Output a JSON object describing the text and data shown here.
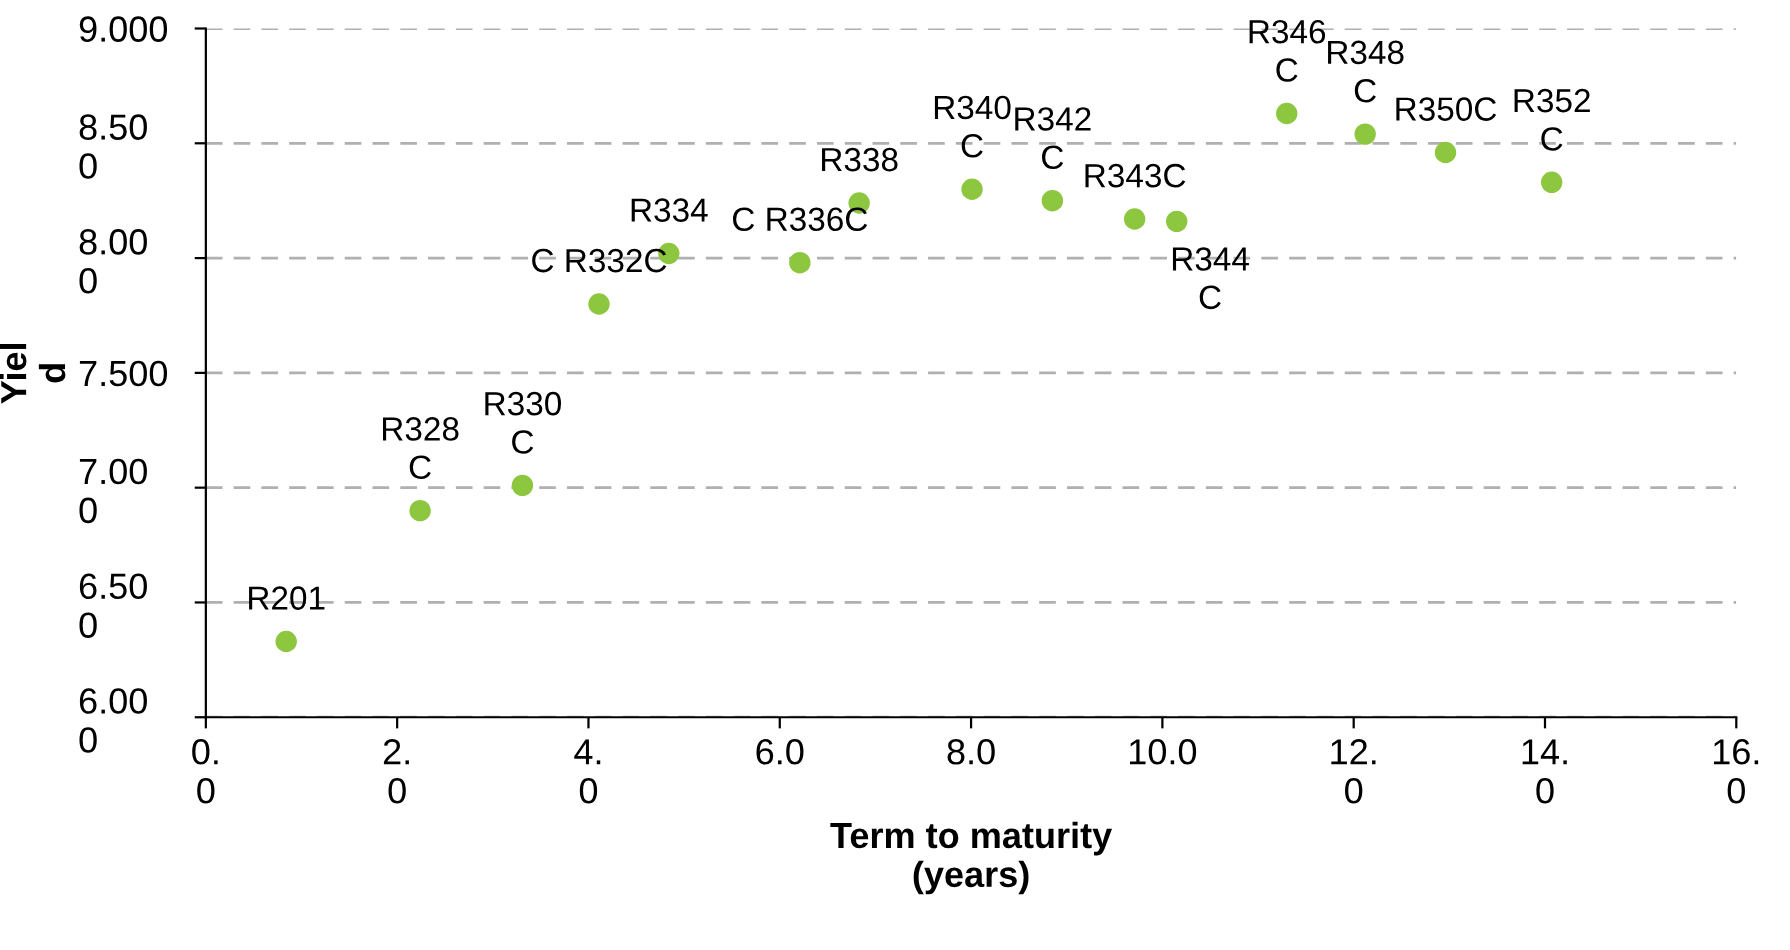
{
  "chart_data": {
    "type": "scatter",
    "xlabel": "Term to maturity\n(years)",
    "ylabel": "Yiel\nd",
    "xlim": [
      0,
      16
    ],
    "ylim": [
      6,
      9
    ],
    "xticks": [
      {
        "value": 0,
        "label": "0.\n0"
      },
      {
        "value": 2,
        "label": "2.\n0"
      },
      {
        "value": 4,
        "label": "4.\n0"
      },
      {
        "value": 6,
        "label": "6.0"
      },
      {
        "value": 8,
        "label": "8.0"
      },
      {
        "value": 10,
        "label": "10.0"
      },
      {
        "value": 12,
        "label": "12.\n0"
      },
      {
        "value": 14,
        "label": "14.\n0"
      },
      {
        "value": 16,
        "label": "16.\n0"
      }
    ],
    "yticks": [
      {
        "value": 6,
        "label": "6.00\n0"
      },
      {
        "value": 6.5,
        "label": "6.50\n0"
      },
      {
        "value": 7,
        "label": "7.00\n0"
      },
      {
        "value": 7.5,
        "label": "7.500"
      },
      {
        "value": 8,
        "label": "8.00\n0"
      },
      {
        "value": 8.5,
        "label": "8.50\n0"
      },
      {
        "value": 9,
        "label": "9.000"
      }
    ],
    "grid": "y",
    "marker": "circle",
    "series": [
      {
        "color": "#8dc63f",
        "x": [
          0.84,
          2.24,
          3.31,
          4.11,
          4.84,
          6.21,
          6.83,
          8.01,
          8.85,
          9.71,
          10.15,
          11.3,
          12.12,
          12.96,
          14.07
        ],
        "values": [
          6.33,
          6.9,
          7.01,
          7.8,
          8.02,
          7.98,
          8.24,
          8.3,
          8.25,
          8.17,
          8.16,
          8.63,
          8.54,
          8.46,
          8.33
        ]
      }
    ],
    "annotations": [
      {
        "text": "R201",
        "x": 0.84,
        "y": 6.33
      },
      {
        "text": "R328\nC",
        "x": 2.24,
        "y": 6.9
      },
      {
        "text": "R330\nC",
        "x": 3.31,
        "y": 7.01
      },
      {
        "text": "C R332C",
        "x": 4.11,
        "y": 7.8
      },
      {
        "text": "R334",
        "x": 4.84,
        "y": 8.02
      },
      {
        "text": "C R336C",
        "x": 6.21,
        "y": 7.98
      },
      {
        "text": "R338",
        "x": 6.83,
        "y": 8.24
      },
      {
        "text": "R340\nC",
        "x": 8.01,
        "y": 8.3
      },
      {
        "text": "R342\nC",
        "x": 8.85,
        "y": 8.25
      },
      {
        "text": "R343C",
        "x": 9.71,
        "y": 8.17
      },
      {
        "text": "R344\nC",
        "x": 10.15,
        "y": 8.16
      },
      {
        "text": "R346\nC",
        "x": 11.3,
        "y": 8.63
      },
      {
        "text": "R348\nC",
        "x": 12.12,
        "y": 8.54
      },
      {
        "text": "R350C",
        "x": 12.96,
        "y": 8.46
      },
      {
        "text": "R352\nC",
        "x": 14.07,
        "y": 8.33
      }
    ]
  }
}
